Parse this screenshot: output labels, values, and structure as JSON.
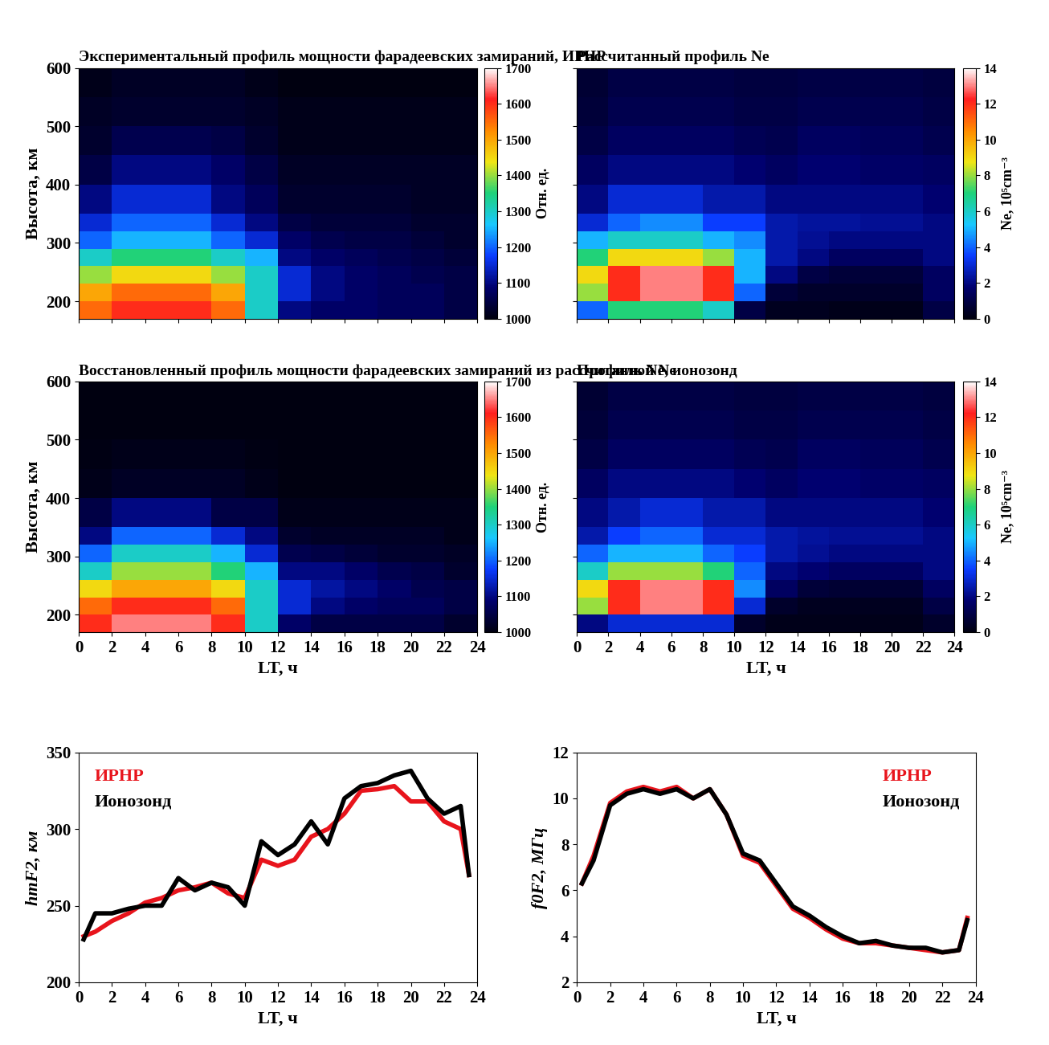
{
  "chart_data": [
    {
      "type": "heatmap",
      "title": "Экспериментальный профиль мощности фарадеевских замираний, ИРНР",
      "ylabel": "Высота, км",
      "x_edges": [
        0,
        2,
        4,
        6,
        8,
        10,
        12,
        14,
        16,
        18,
        20,
        22,
        24
      ],
      "y_edges": [
        170,
        200,
        230,
        260,
        290,
        320,
        350,
        400,
        450,
        500,
        550,
        600
      ],
      "cells": [
        [
          1550,
          1600,
          1600,
          1600,
          1550,
          1300,
          1100,
          1080,
          1080,
          1070,
          1070,
          1050
        ],
        [
          1500,
          1550,
          1550,
          1550,
          1500,
          1300,
          1150,
          1100,
          1080,
          1070,
          1070,
          1050
        ],
        [
          1400,
          1450,
          1450,
          1450,
          1400,
          1300,
          1150,
          1100,
          1080,
          1070,
          1060,
          1050
        ],
        [
          1300,
          1350,
          1350,
          1350,
          1300,
          1250,
          1100,
          1080,
          1070,
          1060,
          1050,
          1040
        ],
        [
          1200,
          1250,
          1250,
          1250,
          1200,
          1150,
          1080,
          1060,
          1050,
          1050,
          1040,
          1030
        ],
        [
          1150,
          1200,
          1200,
          1200,
          1150,
          1100,
          1050,
          1040,
          1040,
          1040,
          1030,
          1030
        ],
        [
          1100,
          1150,
          1150,
          1150,
          1100,
          1070,
          1030,
          1030,
          1030,
          1030,
          1020,
          1020
        ],
        [
          1050,
          1100,
          1100,
          1100,
          1080,
          1050,
          1020,
          1020,
          1020,
          1020,
          1020,
          1020
        ],
        [
          1030,
          1060,
          1060,
          1060,
          1050,
          1030,
          1010,
          1010,
          1010,
          1010,
          1010,
          1010
        ],
        [
          1020,
          1030,
          1030,
          1030,
          1030,
          1020,
          1010,
          1010,
          1010,
          1010,
          1010,
          1010
        ],
        [
          1010,
          1020,
          1020,
          1020,
          1020,
          1010,
          1000,
          1000,
          1000,
          1000,
          1000,
          1000
        ]
      ],
      "colorbar": {
        "label": "Отн. ед.",
        "lim": [
          1000,
          1700
        ],
        "ticks": [
          1000,
          1100,
          1200,
          1300,
          1400,
          1500,
          1600,
          1700
        ]
      },
      "xlim": [
        0,
        24
      ],
      "ylim": [
        170,
        600
      ],
      "xticks": [
        0,
        2,
        4,
        6,
        8,
        10,
        12,
        14,
        16,
        18,
        20,
        22,
        24
      ],
      "yticks": [
        200,
        300,
        400,
        500,
        600
      ],
      "tick_labels": "y"
    },
    {
      "type": "heatmap",
      "title": "Рассчитанный профиль Ne",
      "x_edges": [
        0,
        2,
        4,
        6,
        8,
        10,
        12,
        14,
        16,
        18,
        20,
        22,
        24
      ],
      "y_edges": [
        170,
        200,
        230,
        260,
        290,
        320,
        350,
        400,
        450,
        500,
        550,
        600
      ],
      "cells": [
        [
          4,
          7,
          7,
          7,
          6,
          1,
          0.3,
          0.3,
          0.2,
          0.2,
          0.2,
          1
        ],
        [
          8,
          12,
          13,
          13,
          12,
          4,
          0.8,
          0.5,
          0.5,
          0.5,
          0.5,
          1.5
        ],
        [
          9,
          12,
          13,
          13,
          12,
          5,
          2,
          1,
          0.8,
          0.8,
          0.8,
          1.5
        ],
        [
          7,
          9,
          9,
          9,
          8,
          5,
          2.5,
          2,
          1.5,
          1.5,
          1.5,
          2
        ],
        [
          5,
          6,
          6,
          6,
          5,
          4.5,
          2.5,
          2.2,
          2,
          2,
          2,
          2
        ],
        [
          3,
          4,
          4.5,
          4.5,
          3.5,
          3.5,
          2.5,
          2.3,
          2.3,
          2.2,
          2.2,
          2
        ],
        [
          2,
          3,
          3,
          3,
          2.5,
          2.5,
          2,
          2,
          2,
          2,
          2,
          1.8
        ],
        [
          1.5,
          2,
          2,
          2,
          2,
          1.8,
          1.5,
          1.8,
          1.8,
          1.6,
          1.6,
          1.5
        ],
        [
          1,
          1.5,
          1.5,
          1.5,
          1.5,
          1.3,
          1.2,
          1.5,
          1.5,
          1.4,
          1.4,
          1.2
        ],
        [
          0.8,
          1.2,
          1.2,
          1.2,
          1.2,
          1,
          1,
          1.2,
          1.2,
          1.2,
          1.2,
          1
        ],
        [
          0.7,
          1,
          1,
          1,
          1,
          0.9,
          0.9,
          1,
          1,
          1,
          1,
          0.9
        ]
      ],
      "colorbar": {
        "label": "Ne, 10⁵cm⁻³",
        "lim": [
          0,
          14
        ],
        "ticks": [
          0,
          2,
          4,
          6,
          8,
          10,
          12,
          14
        ]
      },
      "xlim": [
        0,
        24
      ],
      "ylim": [
        170,
        600
      ],
      "xticks": [
        0,
        2,
        4,
        6,
        8,
        10,
        12,
        14,
        16,
        18,
        20,
        22,
        24
      ],
      "yticks": [
        200,
        300,
        400,
        500,
        600
      ],
      "tick_labels": false
    },
    {
      "type": "heatmap",
      "title": "Восстановленный профиль мощности фарадеевских замираний из рассчитанной Ne",
      "xlabel": "LT, ч",
      "ylabel": "Высота, км",
      "x_edges": [
        0,
        2,
        4,
        6,
        8,
        10,
        12,
        14,
        16,
        18,
        20,
        22,
        24
      ],
      "y_edges": [
        170,
        200,
        230,
        260,
        290,
        320,
        350,
        400,
        450,
        500,
        550,
        600
      ],
      "cells": [
        [
          1600,
          1650,
          1650,
          1650,
          1600,
          1300,
          1080,
          1050,
          1050,
          1050,
          1050,
          1030
        ],
        [
          1550,
          1600,
          1600,
          1600,
          1550,
          1300,
          1150,
          1100,
          1080,
          1070,
          1070,
          1050
        ],
        [
          1450,
          1500,
          1500,
          1500,
          1450,
          1300,
          1150,
          1120,
          1100,
          1080,
          1060,
          1050
        ],
        [
          1300,
          1400,
          1400,
          1400,
          1350,
          1250,
          1100,
          1100,
          1080,
          1060,
          1050,
          1030
        ],
        [
          1200,
          1300,
          1300,
          1300,
          1250,
          1150,
          1060,
          1050,
          1040,
          1030,
          1030,
          1020
        ],
        [
          1100,
          1200,
          1200,
          1200,
          1150,
          1100,
          1030,
          1020,
          1020,
          1020,
          1020,
          1010
        ],
        [
          1050,
          1100,
          1100,
          1100,
          1050,
          1050,
          1010,
          1010,
          1010,
          1010,
          1010,
          1010
        ],
        [
          1010,
          1020,
          1020,
          1020,
          1020,
          1010,
          1000,
          1000,
          1000,
          1000,
          1000,
          1000
        ],
        [
          1005,
          1010,
          1010,
          1010,
          1010,
          1005,
          1000,
          1000,
          1000,
          1000,
          1000,
          1000
        ],
        [
          1000,
          1000,
          1000,
          1000,
          1000,
          1000,
          1000,
          1000,
          1000,
          1000,
          1000,
          1000
        ],
        [
          1000,
          1000,
          1000,
          1000,
          1000,
          1000,
          1000,
          1000,
          1000,
          1000,
          1000,
          1000
        ]
      ],
      "colorbar": {
        "label": "Отн. ед.",
        "lim": [
          1000,
          1700
        ],
        "ticks": [
          1000,
          1100,
          1200,
          1300,
          1400,
          1500,
          1600,
          1700
        ]
      },
      "xlim": [
        0,
        24
      ],
      "ylim": [
        170,
        600
      ],
      "xticks": [
        0,
        2,
        4,
        6,
        8,
        10,
        12,
        14,
        16,
        18,
        20,
        22,
        24
      ],
      "yticks": [
        200,
        300,
        400,
        500,
        600
      ],
      "tick_labels": true
    },
    {
      "type": "heatmap",
      "title": "Профиль Ne, ионозонд",
      "xlabel": "LT, ч",
      "x_edges": [
        0,
        2,
        4,
        6,
        8,
        10,
        12,
        14,
        16,
        18,
        20,
        22,
        24
      ],
      "y_edges": [
        170,
        200,
        230,
        260,
        290,
        320,
        350,
        400,
        450,
        500,
        550,
        600
      ],
      "cells": [
        [
          2,
          3,
          3,
          3,
          3,
          0.5,
          0.2,
          0.2,
          0.2,
          0.2,
          0.2,
          0.5
        ],
        [
          8,
          12,
          13,
          13,
          12,
          3,
          0.5,
          0.3,
          0.3,
          0.3,
          0.3,
          1
        ],
        [
          9,
          12,
          13,
          13,
          12,
          4.5,
          1.5,
          0.8,
          0.7,
          0.7,
          0.7,
          1.5
        ],
        [
          6,
          8,
          8,
          8,
          7,
          4,
          2,
          1.8,
          1.5,
          1.5,
          1.5,
          2
        ],
        [
          4,
          5,
          5,
          5,
          4,
          3.5,
          2.5,
          2.2,
          2,
          2,
          2,
          2
        ],
        [
          2.5,
          3.5,
          4,
          4,
          3,
          3,
          2.5,
          2.3,
          2.2,
          2.2,
          2.2,
          2
        ],
        [
          2,
          2.5,
          3,
          3,
          2.5,
          2.5,
          2,
          2,
          2,
          2,
          2,
          1.8
        ],
        [
          1.5,
          2,
          2,
          2,
          2,
          1.8,
          1.5,
          1.8,
          1.8,
          1.6,
          1.6,
          1.5
        ],
        [
          1,
          1.5,
          1.5,
          1.5,
          1.5,
          1.3,
          1.2,
          1.5,
          1.5,
          1.4,
          1.4,
          1.2
        ],
        [
          0.8,
          1.2,
          1.2,
          1.2,
          1.2,
          1,
          1,
          1.2,
          1.2,
          1.2,
          1.2,
          1
        ],
        [
          0.7,
          1,
          1,
          1,
          1,
          0.9,
          0.9,
          1,
          1,
          1,
          1,
          0.9
        ]
      ],
      "colorbar": {
        "label": "Ne, 10⁵cm⁻³",
        "lim": [
          0,
          14
        ],
        "ticks": [
          0,
          2,
          4,
          6,
          8,
          10,
          12,
          14
        ]
      },
      "xlim": [
        0,
        24
      ],
      "ylim": [
        170,
        600
      ],
      "xticks": [
        0,
        2,
        4,
        6,
        8,
        10,
        12,
        14,
        16,
        18,
        20,
        22,
        24
      ],
      "yticks": [
        200,
        300,
        400,
        500,
        600
      ],
      "tick_labels": "x"
    },
    {
      "type": "line",
      "xlabel": "LT, ч",
      "ylabel": "hmF2, км",
      "x": [
        0.3,
        1,
        2,
        3,
        4,
        5,
        6,
        7,
        8,
        9,
        10,
        11,
        12,
        13,
        14,
        15,
        16,
        17,
        18,
        19,
        20,
        21,
        22,
        23,
        23.5
      ],
      "series": [
        {
          "name": "ИРНР",
          "color": "#e8141c",
          "values": [
            230,
            233,
            240,
            245,
            252,
            255,
            260,
            262,
            265,
            258,
            255,
            280,
            276,
            280,
            295,
            300,
            310,
            325,
            326,
            328,
            318,
            318,
            305,
            300,
            270
          ]
        },
        {
          "name": "Ионозонд",
          "color": "#000000",
          "values": [
            228,
            245,
            245,
            248,
            250,
            250,
            268,
            260,
            265,
            262,
            250,
            292,
            283,
            290,
            305,
            290,
            320,
            328,
            330,
            335,
            338,
            320,
            310,
            315,
            270
          ]
        }
      ],
      "xlim": [
        0,
        24
      ],
      "ylim": [
        200,
        350
      ],
      "xticks": [
        0,
        2,
        4,
        6,
        8,
        10,
        12,
        14,
        16,
        18,
        20,
        22,
        24
      ],
      "yticks": [
        200,
        250,
        300,
        350
      ],
      "legend": "upper left"
    },
    {
      "type": "line",
      "xlabel": "LT, ч",
      "ylabel": "f0F2, МГц",
      "x": [
        0.3,
        1,
        2,
        3,
        4,
        5,
        6,
        7,
        8,
        9,
        10,
        11,
        12,
        13,
        14,
        15,
        16,
        17,
        18,
        19,
        20,
        21,
        22,
        23,
        23.5
      ],
      "series": [
        {
          "name": "ИРНР",
          "color": "#e8141c",
          "values": [
            6.3,
            7.5,
            9.8,
            10.3,
            10.5,
            10.3,
            10.5,
            10.0,
            10.4,
            9.3,
            7.5,
            7.2,
            6.2,
            5.2,
            4.8,
            4.3,
            3.9,
            3.7,
            3.7,
            3.6,
            3.5,
            3.4,
            3.3,
            3.4,
            4.8
          ]
        },
        {
          "name": "Ионозонд",
          "color": "#000000",
          "values": [
            6.3,
            7.3,
            9.7,
            10.2,
            10.4,
            10.2,
            10.4,
            10.0,
            10.4,
            9.3,
            7.6,
            7.3,
            6.3,
            5.3,
            4.9,
            4.4,
            4.0,
            3.7,
            3.8,
            3.6,
            3.5,
            3.5,
            3.3,
            3.4,
            4.7
          ]
        }
      ],
      "xlim": [
        0,
        24
      ],
      "ylim": [
        2,
        12
      ],
      "xticks": [
        0,
        2,
        4,
        6,
        8,
        10,
        12,
        14,
        16,
        18,
        20,
        22,
        24
      ],
      "yticks": [
        2,
        4,
        6,
        8,
        10,
        12
      ],
      "legend": "upper right"
    }
  ]
}
